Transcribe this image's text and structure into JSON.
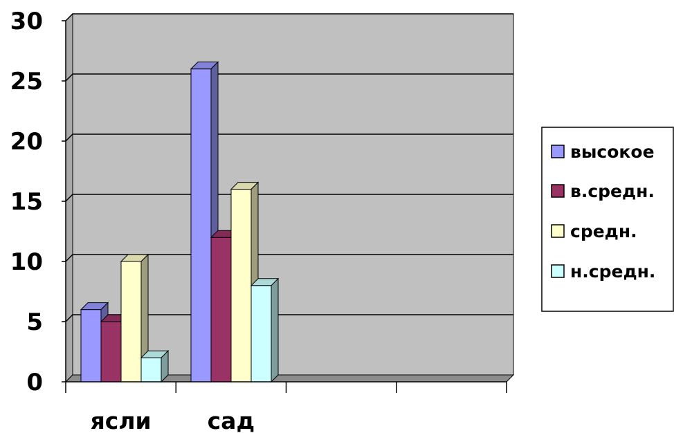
{
  "chart_data": {
    "type": "bar",
    "categories": [
      "ясли",
      "сад"
    ],
    "series": [
      {
        "name": "высокое",
        "values": [
          6,
          26
        ],
        "color": "#9999ff"
      },
      {
        "name": "в.средн.",
        "values": [
          5,
          12
        ],
        "color": "#993366"
      },
      {
        "name": "средн.",
        "values": [
          10,
          16
        ],
        "color": "#ffffcc"
      },
      {
        "name": "н.средн.",
        "values": [
          2,
          8
        ],
        "color": "#ccffff"
      }
    ],
    "title": "",
    "xlabel": "",
    "ylabel": "",
    "ylim": [
      0,
      30
    ],
    "yticks": [
      "0",
      "5",
      "10",
      "15",
      "20",
      "25",
      "30"
    ],
    "grid": true,
    "legend_position": "right",
    "plot_background": "#c0c0c0",
    "bar_style": "3d"
  }
}
